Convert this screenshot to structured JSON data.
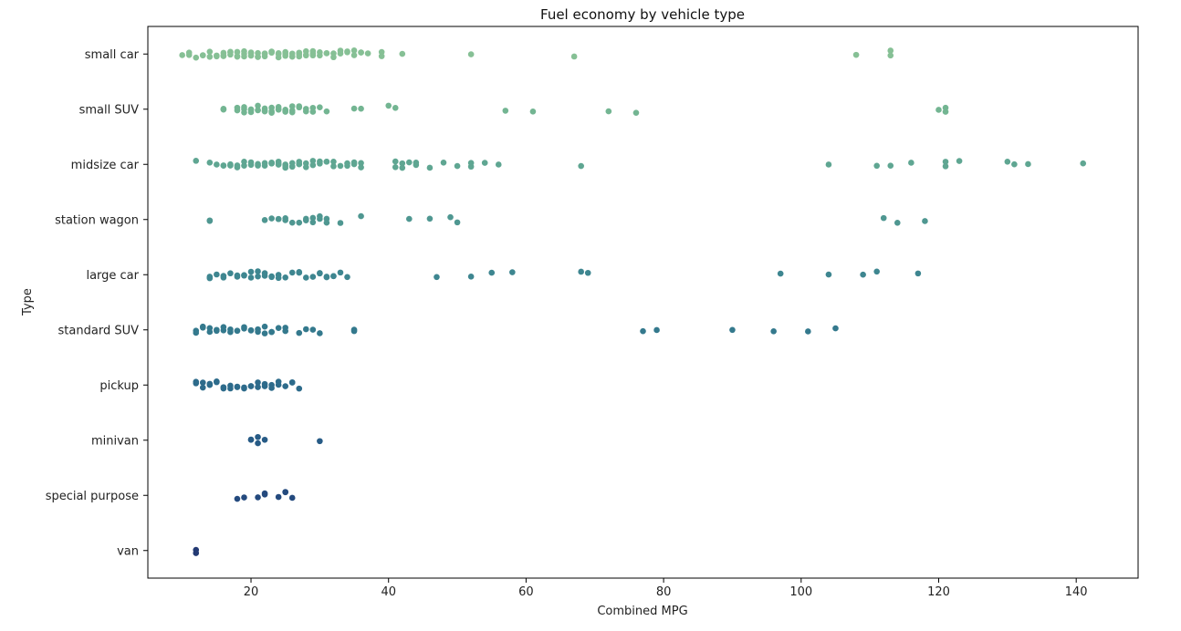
{
  "chart_data": {
    "type": "scatter",
    "subtype": "strip",
    "title": "Fuel economy by vehicle type",
    "xlabel": "Combined MPG",
    "ylabel": "Type",
    "xlim": [
      5,
      149
    ],
    "xticks": [
      20,
      40,
      60,
      80,
      100,
      120,
      140
    ],
    "grid": false,
    "legend": "none",
    "categories": [
      "small car",
      "small SUV",
      "midsize car",
      "station wagon",
      "large car",
      "standard SUV",
      "pickup",
      "minivan",
      "special purpose",
      "van"
    ],
    "colors": [
      "#86c095",
      "#73b592",
      "#5fa692",
      "#4f9791",
      "#3e8690",
      "#34798d",
      "#2d6b8b",
      "#275b86",
      "#244a7e",
      "#233a73"
    ],
    "series": [
      {
        "category": "small car",
        "values": [
          10,
          11,
          11,
          12,
          13,
          13,
          14,
          14,
          15,
          15,
          16,
          16,
          16,
          17,
          17,
          17,
          18,
          18,
          18,
          19,
          19,
          19,
          20,
          20,
          20,
          21,
          21,
          21,
          22,
          22,
          22,
          23,
          23,
          23,
          24,
          24,
          24,
          25,
          25,
          25,
          26,
          26,
          26,
          27,
          27,
          27,
          28,
          28,
          28,
          29,
          29,
          29,
          30,
          30,
          31,
          31,
          32,
          32,
          33,
          33,
          34,
          34,
          35,
          35,
          36,
          36,
          37,
          39,
          39,
          42,
          52,
          67,
          108,
          113,
          113
        ]
      },
      {
        "category": "small SUV",
        "values": [
          16,
          16,
          16,
          18,
          18,
          19,
          19,
          19,
          20,
          20,
          20,
          21,
          21,
          21,
          22,
          22,
          22,
          23,
          23,
          23,
          24,
          24,
          24,
          25,
          25,
          25,
          26,
          26,
          26,
          27,
          27,
          28,
          28,
          29,
          29,
          30,
          31,
          35,
          36,
          40,
          41,
          57,
          61,
          72,
          76,
          120,
          121,
          121
        ]
      },
      {
        "category": "midsize car",
        "values": [
          12,
          14,
          15,
          16,
          16,
          17,
          17,
          18,
          18,
          19,
          19,
          20,
          20,
          21,
          21,
          22,
          22,
          23,
          23,
          23,
          24,
          24,
          24,
          25,
          25,
          25,
          26,
          26,
          26,
          27,
          27,
          27,
          28,
          28,
          29,
          29,
          30,
          30,
          31,
          31,
          32,
          32,
          33,
          34,
          34,
          35,
          35,
          36,
          36,
          41,
          41,
          42,
          42,
          43,
          44,
          44,
          46,
          48,
          50,
          52,
          52,
          54,
          56,
          68,
          104,
          111,
          113,
          116,
          121,
          121,
          123,
          130,
          131,
          133,
          141
        ]
      },
      {
        "category": "station wagon",
        "values": [
          14,
          14,
          22,
          23,
          24,
          24,
          25,
          25,
          26,
          27,
          28,
          28,
          29,
          29,
          30,
          30,
          31,
          31,
          33,
          36,
          43,
          46,
          49,
          50,
          112,
          114,
          118
        ]
      },
      {
        "category": "large car",
        "values": [
          14,
          14,
          15,
          16,
          16,
          17,
          18,
          18,
          19,
          19,
          20,
          20,
          21,
          21,
          22,
          22,
          23,
          23,
          24,
          24,
          25,
          26,
          27,
          27,
          28,
          29,
          30,
          30,
          31,
          31,
          32,
          32,
          33,
          34,
          47,
          52,
          55,
          58,
          68,
          69,
          97,
          104,
          109,
          111,
          117
        ]
      },
      {
        "category": "standard SUV",
        "values": [
          12,
          12,
          13,
          13,
          14,
          14,
          15,
          15,
          16,
          16,
          17,
          17,
          18,
          18,
          19,
          19,
          20,
          20,
          21,
          21,
          22,
          22,
          23,
          23,
          24,
          25,
          25,
          27,
          28,
          29,
          30,
          35,
          35,
          77,
          79,
          90,
          96,
          101,
          105
        ]
      },
      {
        "category": "pickup",
        "values": [
          12,
          12,
          13,
          13,
          14,
          14,
          15,
          15,
          16,
          16,
          17,
          17,
          18,
          18,
          19,
          19,
          20,
          20,
          21,
          21,
          22,
          22,
          23,
          23,
          24,
          24,
          25,
          26,
          26,
          27
        ]
      },
      {
        "category": "minivan",
        "values": [
          20,
          20,
          21,
          21,
          22,
          30
        ]
      },
      {
        "category": "special purpose",
        "values": [
          18,
          19,
          21,
          22,
          22,
          24,
          25,
          25,
          26
        ]
      },
      {
        "category": "van",
        "values": [
          12,
          12
        ]
      }
    ]
  }
}
